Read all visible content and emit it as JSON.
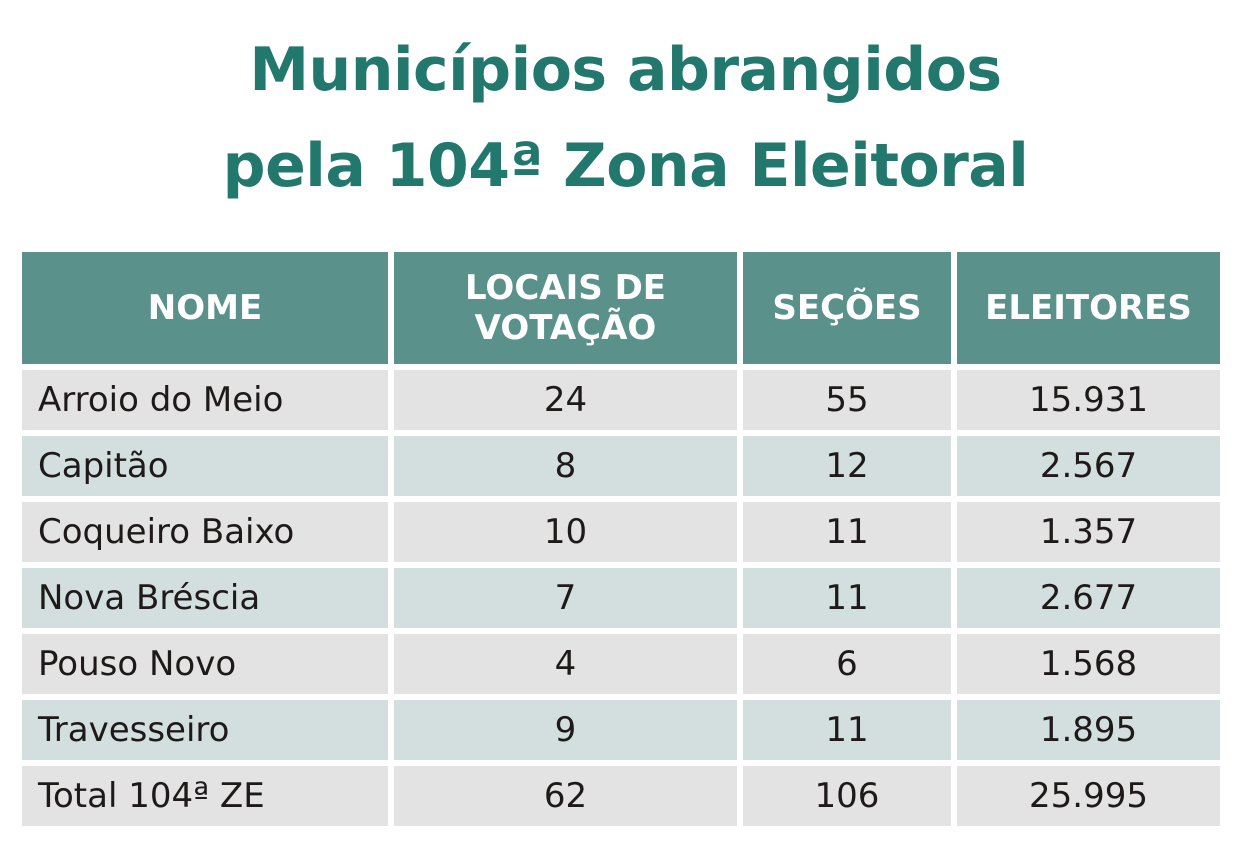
{
  "title": {
    "line1": "Municípios abrangidos",
    "line2": "pela 104ª Zona Eleitoral"
  },
  "table": {
    "headers": {
      "nome": "NOME",
      "locais_line1": "LOCAIS DE",
      "locais_line2": "VOTAÇÃO",
      "secoes": "SEÇÕES",
      "eleitores": "ELEITORES"
    },
    "rows": [
      {
        "nome": "Arroio do Meio",
        "locais": "24",
        "secoes": "55",
        "eleitores": "15.931"
      },
      {
        "nome": "Capitão",
        "locais": "8",
        "secoes": "12",
        "eleitores": "2.567"
      },
      {
        "nome": "Coqueiro Baixo",
        "locais": "10",
        "secoes": "11",
        "eleitores": "1.357"
      },
      {
        "nome": "Nova Bréscia",
        "locais": "7",
        "secoes": "11",
        "eleitores": "2.677"
      },
      {
        "nome": "Pouso Novo",
        "locais": "4",
        "secoes": "6",
        "eleitores": "1.568"
      },
      {
        "nome": "Travesseiro",
        "locais": "9",
        "secoes": "11",
        "eleitores": "1.895"
      }
    ],
    "total": {
      "nome": "Total 104ª ZE",
      "locais": "62",
      "secoes": "106",
      "eleitores": "25.995"
    }
  },
  "colors": {
    "title": "#23786e",
    "header_bg": "#5a918b",
    "row_gray": "#e3e3e3",
    "row_teal": "#d3dfde"
  }
}
